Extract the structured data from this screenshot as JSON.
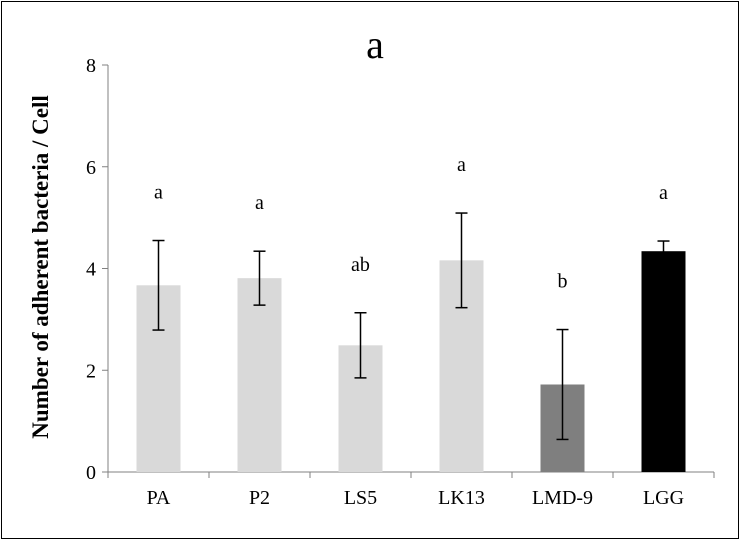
{
  "chart_data": {
    "type": "bar",
    "title": "a",
    "xlabel": "",
    "ylabel": "Number of adherent bacteria / Cell",
    "categories": [
      "PA",
      "P2",
      "LS5",
      "LK13",
      "LMD-9",
      "LGG"
    ],
    "values": [
      3.67,
      3.81,
      2.49,
      4.16,
      1.72,
      4.34
    ],
    "error": [
      0.88,
      0.53,
      0.64,
      0.93,
      1.08,
      0.2
    ],
    "significance_letters": [
      "a",
      "a",
      "ab",
      "a",
      "b",
      "a"
    ],
    "bar_colors": [
      "#d9d9d9",
      "#d9d9d9",
      "#d9d9d9",
      "#d9d9d9",
      "#7f7f7f",
      "#000000"
    ],
    "ylim": [
      0,
      8
    ],
    "yticks": [
      0,
      2,
      4,
      6,
      8
    ],
    "grid": false,
    "legend": "none"
  }
}
